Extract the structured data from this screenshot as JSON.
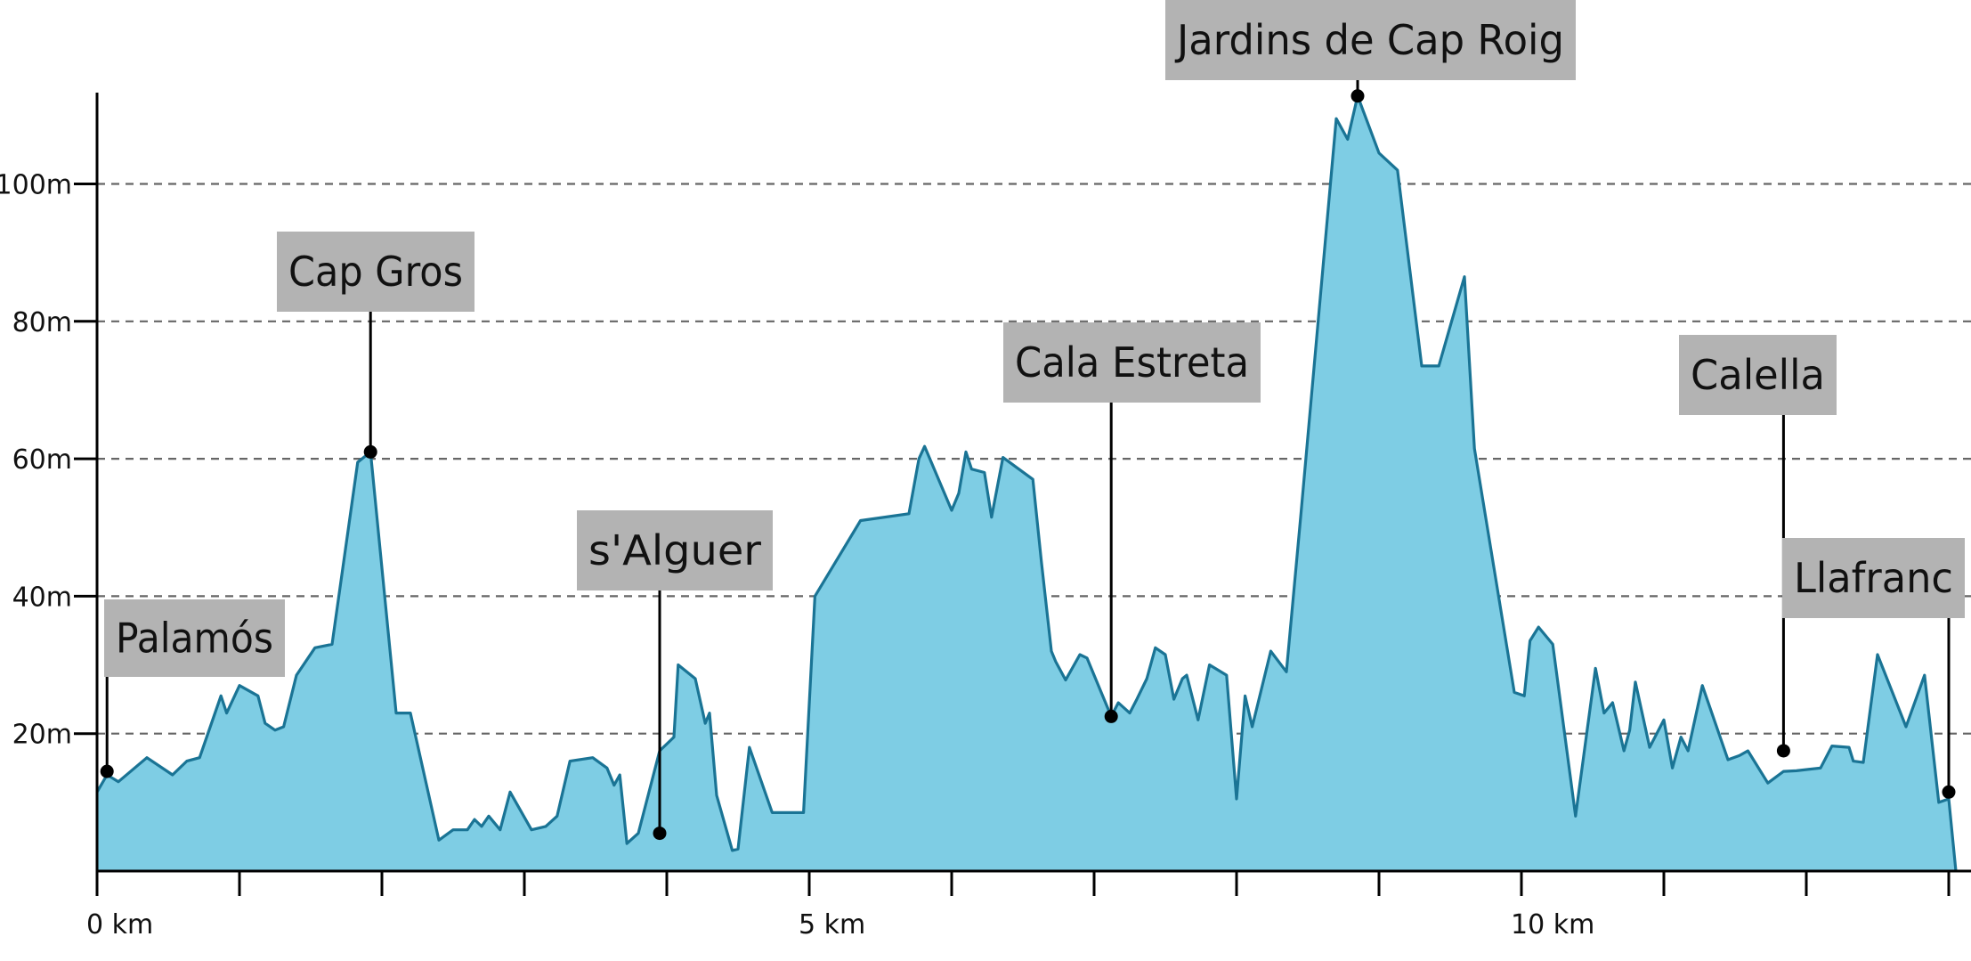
{
  "chart_data": {
    "type": "area",
    "title": "",
    "xlabel": "",
    "ylabel": "",
    "xlim": [
      0,
      13.05
    ],
    "ylim": [
      0,
      113
    ],
    "grid": true,
    "x_ticks": [
      {
        "value": 0,
        "label": "0 km"
      },
      {
        "value": 5,
        "label": "5 km"
      },
      {
        "value": 10,
        "label": "10 km"
      }
    ],
    "x_minor_ticks": [
      1,
      2,
      3,
      4,
      6,
      7,
      8,
      9,
      11,
      12,
      13
    ],
    "y_ticks": [
      {
        "value": 20,
        "label": "20m"
      },
      {
        "value": 40,
        "label": "40m"
      },
      {
        "value": 60,
        "label": "60m"
      },
      {
        "value": 80,
        "label": "80m"
      },
      {
        "value": 100,
        "label": "100m"
      }
    ],
    "colors": {
      "fill": "#7ecde4",
      "line": "#1a7495",
      "axis": "#000000",
      "grid": "#666666",
      "label_bg": "#b3b3b3"
    },
    "series": [
      {
        "x": [
          0,
          0.07,
          0.15,
          0.35,
          0.53,
          0.63,
          0.72,
          0.87,
          0.91,
          1.0,
          1.13,
          1.18,
          1.25,
          1.31,
          1.4,
          1.53,
          1.65,
          1.83,
          1.92,
          2.1,
          2.2,
          2.4,
          2.5,
          2.6,
          2.65,
          2.7,
          2.75,
          2.83,
          2.9,
          3.05,
          3.15,
          3.23,
          3.32,
          3.48,
          3.58,
          3.63,
          3.67,
          3.72,
          3.8,
          3.95,
          4.05,
          4.08,
          4.17,
          4.2,
          4.27,
          4.3,
          4.35,
          4.46,
          4.5,
          4.58,
          4.74,
          4.96,
          5.04,
          5.36,
          5.7,
          5.77,
          5.81,
          6.0,
          6.05,
          6.1,
          6.14,
          6.23,
          6.28,
          6.36,
          6.57,
          6.63,
          6.7,
          6.73,
          6.8,
          6.9,
          6.95,
          7.12,
          7.17,
          7.25,
          7.3,
          7.37,
          7.43,
          7.5,
          7.56,
          7.62,
          7.65,
          7.73,
          7.81,
          7.93,
          8.0,
          8.06,
          8.11,
          8.24,
          8.35,
          8.45,
          8.7,
          8.78,
          8.85,
          9.0,
          9.13,
          9.3,
          9.42,
          9.6,
          9.67,
          9.95,
          10.02,
          10.06,
          10.12,
          10.22,
          10.38,
          10.52,
          10.58,
          10.64,
          10.72,
          10.76,
          10.8,
          10.9,
          11.0,
          11.06,
          11.12,
          11.17,
          11.27,
          11.45,
          11.53,
          11.59,
          11.73,
          11.84,
          11.93,
          12.1,
          12.18,
          12.3,
          12.33,
          12.4,
          12.5,
          12.7,
          12.83,
          12.93,
          13.0,
          13.05
        ],
        "y": [
          11.5,
          14,
          13,
          16.5,
          14,
          16,
          16.5,
          25.5,
          23,
          27,
          25.5,
          21.5,
          20.5,
          21,
          28.5,
          32.5,
          33,
          59.5,
          61,
          23,
          23,
          4.5,
          6,
          6,
          7.5,
          6.5,
          8,
          6,
          11.5,
          6,
          6.5,
          8,
          16,
          16.5,
          15,
          12.5,
          14,
          4,
          5.5,
          17.5,
          19.5,
          30,
          28.5,
          28,
          21.5,
          23,
          11,
          3,
          3.2,
          18,
          8.5,
          8.5,
          40,
          51,
          52,
          60,
          61.8,
          52.5,
          55,
          61,
          58.5,
          58,
          51.5,
          60.2,
          57,
          45,
          32,
          30.5,
          27.8,
          31.5,
          31,
          22.5,
          24.5,
          23,
          25,
          28,
          32.5,
          31.5,
          25,
          28,
          28.5,
          22,
          30,
          28.5,
          10.5,
          25.5,
          21,
          32,
          29,
          51.5,
          109.5,
          106.5,
          112.8,
          104.5,
          102,
          73.5,
          73.5,
          86.5,
          61.5,
          26,
          25.5,
          33.5,
          35.5,
          33,
          8,
          29.5,
          23,
          24.5,
          17.5,
          20.5,
          27.5,
          18,
          22,
          15,
          19.5,
          17.5,
          27,
          16.2,
          16.8,
          17.5,
          12.8,
          14.5,
          14.6,
          15,
          18.2,
          18,
          16,
          15.8,
          31.5,
          21,
          28.5,
          10,
          10.5,
          0
        ]
      }
    ],
    "annotations": [
      {
        "label": "Palamós",
        "x": 0.07,
        "y": 14.5
      },
      {
        "label": "Cap Gros",
        "x": 1.92,
        "y": 61
      },
      {
        "label": "s'Alguer",
        "x": 3.95,
        "y": 5.5
      },
      {
        "label": "Cala Estreta",
        "x": 7.12,
        "y": 22.5
      },
      {
        "label": "Jardins de Cap Roig",
        "x": 8.85,
        "y": 112.8
      },
      {
        "label": "Calella",
        "x": 11.84,
        "y": 17.5
      },
      {
        "label": "Llafranc",
        "x": 13.0,
        "y": 11.5
      }
    ]
  }
}
